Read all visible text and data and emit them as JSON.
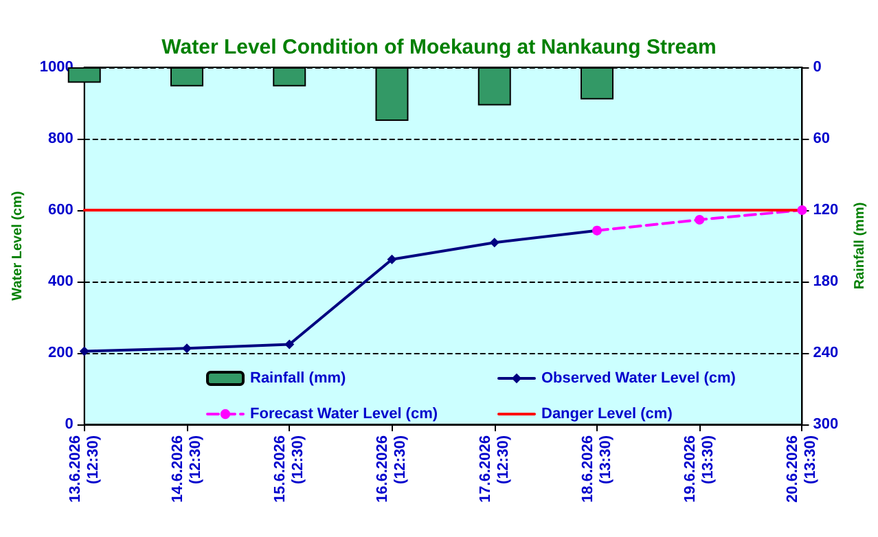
{
  "chart_data": {
    "type": "line",
    "title": "Water Level Condition of Moekaung at Nankaung Stream",
    "ylabel": "Water Level (cm)",
    "y2label": "Rainfall (mm)",
    "categories": [
      "13.6.2026 (12:30)",
      "14.6.2026 (12:30)",
      "15.6.2026 (12:30)",
      "16.6.2026 (12:30)",
      "17.6.2026 (12:30)",
      "18.6.2026 (13:30)",
      "19.6.2026 (13:30)",
      "20.6.2026 (13:30)"
    ],
    "series": [
      {
        "name": "Rainfall (mm)",
        "type": "bar",
        "axis": "y2",
        "color": "#339966",
        "values": [
          13,
          16,
          16,
          45,
          32,
          27,
          null,
          null
        ]
      },
      {
        "name": "Observed Water Level (cm)",
        "color": "#000080",
        "marker": "diamond",
        "line_style": "solid",
        "values": [
          205,
          213,
          224,
          462,
          509,
          543,
          null,
          null
        ]
      },
      {
        "name": "Forecast Water Level (cm)",
        "color": "#ff00ff",
        "marker": "circle",
        "line_style": "dashed",
        "values": [
          null,
          null,
          null,
          null,
          null,
          543,
          573,
          600
        ]
      },
      {
        "name": "Danger Level (cm)",
        "color": "#ff0000",
        "marker": "none",
        "line_style": "solid",
        "values": [
          600,
          600,
          600,
          600,
          600,
          600,
          600,
          600
        ]
      }
    ],
    "ylim": [
      0,
      1000
    ],
    "yticks": [
      0,
      200,
      400,
      600,
      800,
      1000
    ],
    "y2lim": [
      300,
      0
    ],
    "y2ticks": [
      0,
      60,
      120,
      180,
      240,
      300
    ],
    "grid": "y",
    "legend": "bottom"
  }
}
